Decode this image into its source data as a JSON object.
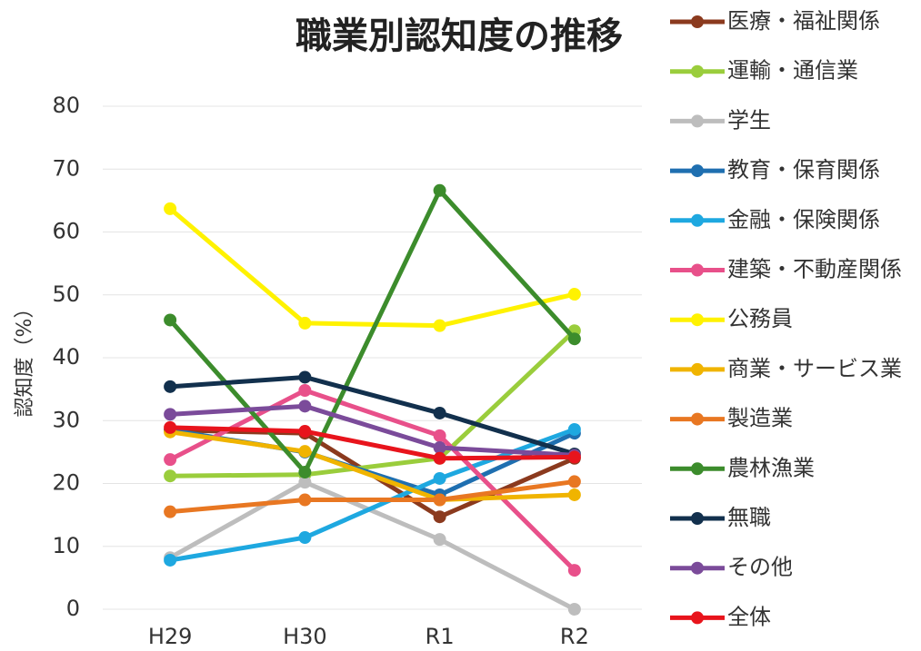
{
  "chart_data": {
    "type": "line",
    "title": "職業別認知度の推移",
    "y_label": "認知度（%）",
    "categories": [
      "H29",
      "H30",
      "R1",
      "R2"
    ],
    "ylim": [
      0,
      80
    ],
    "yticks": [
      0,
      10,
      20,
      30,
      40,
      50,
      60,
      70,
      80
    ],
    "grid": true,
    "legend": "right",
    "series": [
      {
        "name": "医療・福祉関係",
        "color": "#8b3a1e",
        "values": [
          28.5,
          28,
          14.7,
          24
        ]
      },
      {
        "name": "運輸・通信業",
        "color": "#9acd3c",
        "values": [
          21.2,
          21.4,
          24,
          44.3
        ]
      },
      {
        "name": "学生",
        "color": "#bdbdbd",
        "values": [
          8.2,
          20.2,
          11.1,
          0
        ]
      },
      {
        "name": "教育・保育関係",
        "color": "#1f6fb0",
        "values": [
          28.5,
          25,
          18.2,
          28
        ]
      },
      {
        "name": "金融・保険関係",
        "color": "#1ea8e0",
        "values": [
          7.8,
          11.4,
          20.8,
          28.6
        ]
      },
      {
        "name": "建築・不動産関係",
        "color": "#e8508a",
        "values": [
          23.8,
          34.8,
          27.6,
          6.2
        ]
      },
      {
        "name": "公務員",
        "color": "#fff200",
        "values": [
          63.7,
          45.5,
          45.1,
          50.1
        ]
      },
      {
        "name": "商業・サービス業",
        "color": "#f0b400",
        "values": [
          28.2,
          25.1,
          17.4,
          18.2
        ]
      },
      {
        "name": "製造業",
        "color": "#e87722",
        "values": [
          15.5,
          17.4,
          17.4,
          20.3
        ]
      },
      {
        "name": "農林漁業",
        "color": "#3c8c2c",
        "values": [
          46,
          21.8,
          66.6,
          43
        ]
      },
      {
        "name": "無職",
        "color": "#12304d",
        "values": [
          35.4,
          36.9,
          31.2,
          24.7
        ]
      },
      {
        "name": "その他",
        "color": "#7b4b9a",
        "values": [
          31,
          32.3,
          25.7,
          24.5
        ]
      },
      {
        "name": "全体",
        "color": "#e8141c",
        "values": [
          28.9,
          28.3,
          24,
          24.2
        ]
      }
    ]
  }
}
